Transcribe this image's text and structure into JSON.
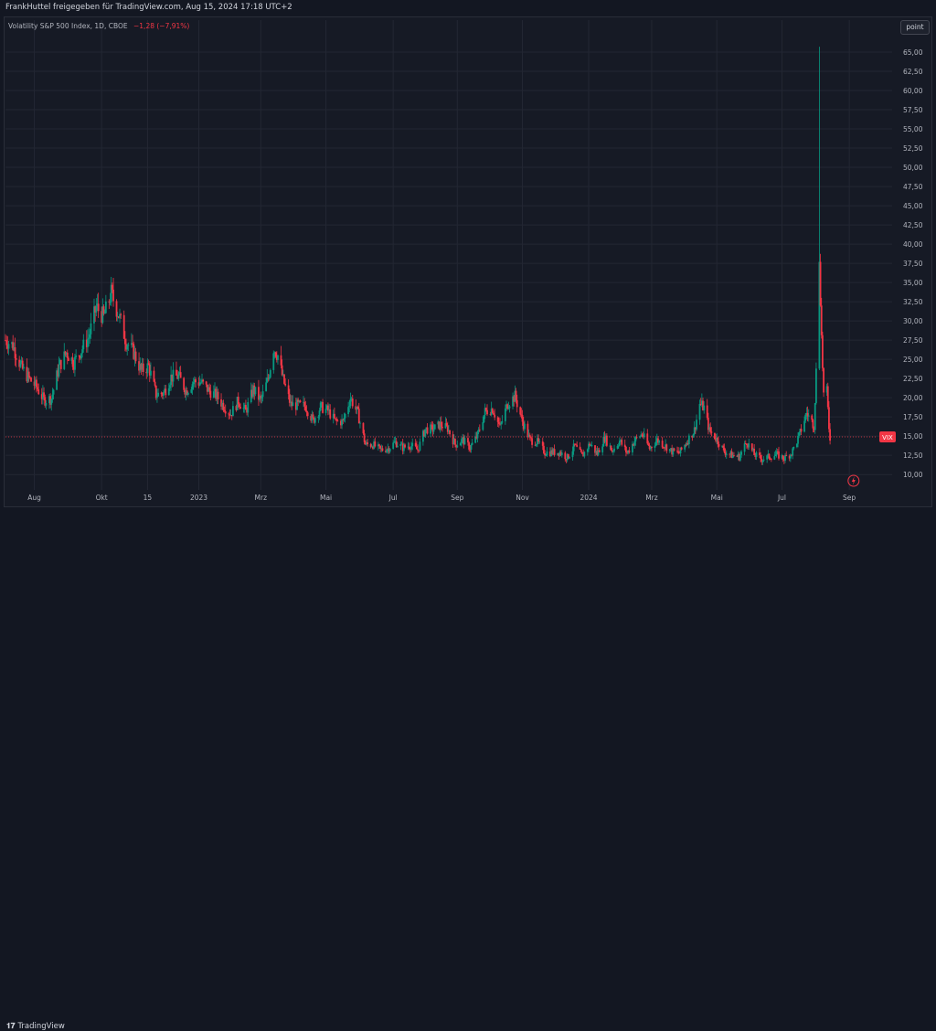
{
  "header": {
    "published_by": "FrankHuttel freigegeben für TradingView.com, Aug 15, 2024 17:18 UTC+2"
  },
  "legend": {
    "symbol": "Volatility S&P 500 Index, 1D, CBOE",
    "change": "−1,28 (−7,91%)",
    "change_color": "#f23645"
  },
  "toolbar": {
    "point_label": "point"
  },
  "footer": {
    "logo_icon": "tradingview-logo-icon",
    "brand": "TradingView"
  },
  "colors": {
    "up": "#089981",
    "down": "#f23645",
    "grid": "#232733",
    "axis_text": "#b2b5be",
    "price_label_bg": "#f23645"
  },
  "chart_data": {
    "type": "candlestick",
    "series_name": "VIX",
    "ylim": [
      8.0,
      67.5
    ],
    "y_ticks": [
      10,
      12.5,
      15,
      17.5,
      20,
      22.5,
      25,
      27.5,
      30,
      32.5,
      35,
      37.5,
      40,
      42.5,
      45,
      47.5,
      50,
      52.5,
      55,
      57.5,
      60,
      62.5,
      65
    ],
    "y_tick_labels": [
      "10,00",
      "12,50",
      "15,00",
      "17,50",
      "20,00",
      "22,50",
      "25,00",
      "27,50",
      "30,00",
      "32,50",
      "35,00",
      "37,50",
      "40,00",
      "42,50",
      "45,00",
      "47,50",
      "50,00",
      "52,50",
      "55,00",
      "57,50",
      "60,00",
      "62,50",
      "65,00"
    ],
    "x_ticks": [
      {
        "label": "Aug",
        "date": "2022-08-01"
      },
      {
        "label": "Okt",
        "date": "2022-10-03"
      },
      {
        "label": "15",
        "date": "2022-11-15"
      },
      {
        "label": "2023",
        "date": "2023-01-02"
      },
      {
        "label": "Mrz",
        "date": "2023-03-01"
      },
      {
        "label": "Mai",
        "date": "2023-05-01"
      },
      {
        "label": "Jul",
        "date": "2023-07-03"
      },
      {
        "label": "Sep",
        "date": "2023-09-01"
      },
      {
        "label": "Nov",
        "date": "2023-11-01"
      },
      {
        "label": "2024",
        "date": "2024-01-02"
      },
      {
        "label": "Mrz",
        "date": "2024-03-01"
      },
      {
        "label": "Mai",
        "date": "2024-05-01"
      },
      {
        "label": "Jul",
        "date": "2024-07-01"
      },
      {
        "label": "Sep",
        "date": "2024-09-02"
      }
    ],
    "x_range": [
      "2022-07-05",
      "2024-09-25"
    ],
    "closes": [
      {
        "date": "2022-07-05",
        "close": 27.5
      },
      {
        "date": "2022-07-12",
        "close": 26.8
      },
      {
        "date": "2022-07-20",
        "close": 23.9
      },
      {
        "date": "2022-07-27",
        "close": 22.5
      },
      {
        "date": "2022-08-03",
        "close": 21.4
      },
      {
        "date": "2022-08-10",
        "close": 19.7
      },
      {
        "date": "2022-08-17",
        "close": 19.9
      },
      {
        "date": "2022-08-24",
        "close": 24.0
      },
      {
        "date": "2022-08-31",
        "close": 25.9
      },
      {
        "date": "2022-09-07",
        "close": 24.6
      },
      {
        "date": "2022-09-14",
        "close": 26.2
      },
      {
        "date": "2022-09-21",
        "close": 27.9
      },
      {
        "date": "2022-09-28",
        "close": 31.8
      },
      {
        "date": "2022-10-05",
        "close": 30.5
      },
      {
        "date": "2022-10-12",
        "close": 33.6
      },
      {
        "date": "2022-10-19",
        "close": 30.8
      },
      {
        "date": "2022-10-26",
        "close": 27.3
      },
      {
        "date": "2022-11-02",
        "close": 25.9
      },
      {
        "date": "2022-11-09",
        "close": 23.5
      },
      {
        "date": "2022-11-16",
        "close": 24.1
      },
      {
        "date": "2022-11-23",
        "close": 20.4
      },
      {
        "date": "2022-11-30",
        "close": 20.6
      },
      {
        "date": "2022-12-07",
        "close": 22.7
      },
      {
        "date": "2022-12-14",
        "close": 22.8
      },
      {
        "date": "2022-12-21",
        "close": 20.9
      },
      {
        "date": "2022-12-28",
        "close": 22.1
      },
      {
        "date": "2023-01-04",
        "close": 22.0
      },
      {
        "date": "2023-01-11",
        "close": 21.0
      },
      {
        "date": "2023-01-18",
        "close": 20.3
      },
      {
        "date": "2023-01-25",
        "close": 19.0
      },
      {
        "date": "2023-02-01",
        "close": 17.9
      },
      {
        "date": "2023-02-08",
        "close": 19.6
      },
      {
        "date": "2023-02-15",
        "close": 18.2
      },
      {
        "date": "2023-02-22",
        "close": 21.1
      },
      {
        "date": "2023-03-01",
        "close": 19.6
      },
      {
        "date": "2023-03-08",
        "close": 22.5
      },
      {
        "date": "2023-03-13",
        "close": 26.5
      },
      {
        "date": "2023-03-17",
        "close": 25.5
      },
      {
        "date": "2023-03-22",
        "close": 22.3
      },
      {
        "date": "2023-03-29",
        "close": 19.1
      },
      {
        "date": "2023-04-05",
        "close": 19.0
      },
      {
        "date": "2023-04-12",
        "close": 18.9
      },
      {
        "date": "2023-04-19",
        "close": 17.0
      },
      {
        "date": "2023-04-26",
        "close": 18.8
      },
      {
        "date": "2023-05-03",
        "close": 18.3
      },
      {
        "date": "2023-05-10",
        "close": 16.9
      },
      {
        "date": "2023-05-17",
        "close": 16.9
      },
      {
        "date": "2023-05-24",
        "close": 20.0
      },
      {
        "date": "2023-05-31",
        "close": 17.9
      },
      {
        "date": "2023-06-07",
        "close": 13.9
      },
      {
        "date": "2023-06-14",
        "close": 13.9
      },
      {
        "date": "2023-06-21",
        "close": 13.2
      },
      {
        "date": "2023-06-28",
        "close": 13.4
      },
      {
        "date": "2023-07-05",
        "close": 14.2
      },
      {
        "date": "2023-07-12",
        "close": 13.5
      },
      {
        "date": "2023-07-19",
        "close": 13.8
      },
      {
        "date": "2023-07-26",
        "close": 13.2
      },
      {
        "date": "2023-08-02",
        "close": 15.9
      },
      {
        "date": "2023-08-09",
        "close": 15.9
      },
      {
        "date": "2023-08-16",
        "close": 16.5
      },
      {
        "date": "2023-08-23",
        "close": 16.0
      },
      {
        "date": "2023-08-30",
        "close": 13.9
      },
      {
        "date": "2023-09-06",
        "close": 14.5
      },
      {
        "date": "2023-09-13",
        "close": 13.5
      },
      {
        "date": "2023-09-20",
        "close": 15.1
      },
      {
        "date": "2023-09-27",
        "close": 18.2
      },
      {
        "date": "2023-10-04",
        "close": 18.6
      },
      {
        "date": "2023-10-11",
        "close": 16.1
      },
      {
        "date": "2023-10-18",
        "close": 19.2
      },
      {
        "date": "2023-10-25",
        "close": 20.2
      },
      {
        "date": "2023-11-01",
        "close": 16.9
      },
      {
        "date": "2023-11-08",
        "close": 14.5
      },
      {
        "date": "2023-11-15",
        "close": 14.2
      },
      {
        "date": "2023-11-22",
        "close": 12.9
      },
      {
        "date": "2023-11-29",
        "close": 12.9
      },
      {
        "date": "2023-12-06",
        "close": 12.9
      },
      {
        "date": "2023-12-13",
        "close": 12.2
      },
      {
        "date": "2023-12-20",
        "close": 13.7
      },
      {
        "date": "2023-12-27",
        "close": 12.4
      },
      {
        "date": "2024-01-03",
        "close": 14.0
      },
      {
        "date": "2024-01-10",
        "close": 12.7
      },
      {
        "date": "2024-01-17",
        "close": 14.8
      },
      {
        "date": "2024-01-24",
        "close": 13.1
      },
      {
        "date": "2024-01-31",
        "close": 14.4
      },
      {
        "date": "2024-02-07",
        "close": 12.8
      },
      {
        "date": "2024-02-14",
        "close": 14.4
      },
      {
        "date": "2024-02-21",
        "close": 15.3
      },
      {
        "date": "2024-02-28",
        "close": 13.4
      },
      {
        "date": "2024-03-06",
        "close": 14.5
      },
      {
        "date": "2024-03-13",
        "close": 13.8
      },
      {
        "date": "2024-03-20",
        "close": 13.0
      },
      {
        "date": "2024-03-27",
        "close": 12.8
      },
      {
        "date": "2024-04-03",
        "close": 14.3
      },
      {
        "date": "2024-04-10",
        "close": 15.8
      },
      {
        "date": "2024-04-15",
        "close": 19.2
      },
      {
        "date": "2024-04-19",
        "close": 18.7
      },
      {
        "date": "2024-04-24",
        "close": 15.7
      },
      {
        "date": "2024-05-01",
        "close": 14.6
      },
      {
        "date": "2024-05-08",
        "close": 13.0
      },
      {
        "date": "2024-05-15",
        "close": 12.5
      },
      {
        "date": "2024-05-22",
        "close": 12.3
      },
      {
        "date": "2024-05-29",
        "close": 14.3
      },
      {
        "date": "2024-06-05",
        "close": 12.6
      },
      {
        "date": "2024-06-12",
        "close": 12.0
      },
      {
        "date": "2024-06-19",
        "close": 12.3
      },
      {
        "date": "2024-06-26",
        "close": 12.6
      },
      {
        "date": "2024-07-03",
        "close": 12.1
      },
      {
        "date": "2024-07-10",
        "close": 12.8
      },
      {
        "date": "2024-07-17",
        "close": 15.0
      },
      {
        "date": "2024-07-24",
        "close": 18.0
      },
      {
        "date": "2024-07-31",
        "close": 16.4
      },
      {
        "date": "2024-08-02",
        "close": 23.4
      },
      {
        "date": "2024-08-05",
        "close": 38.6
      },
      {
        "date": "2024-08-07",
        "close": 27.9
      },
      {
        "date": "2024-08-09",
        "close": 20.4
      },
      {
        "date": "2024-08-12",
        "close": 20.7
      },
      {
        "date": "2024-08-14",
        "close": 16.2
      },
      {
        "date": "2024-08-15",
        "close": 14.9
      }
    ],
    "spike_high": {
      "date": "2024-08-05",
      "value": 65.7
    },
    "last_value": 14.9,
    "last_label": "VIX"
  }
}
